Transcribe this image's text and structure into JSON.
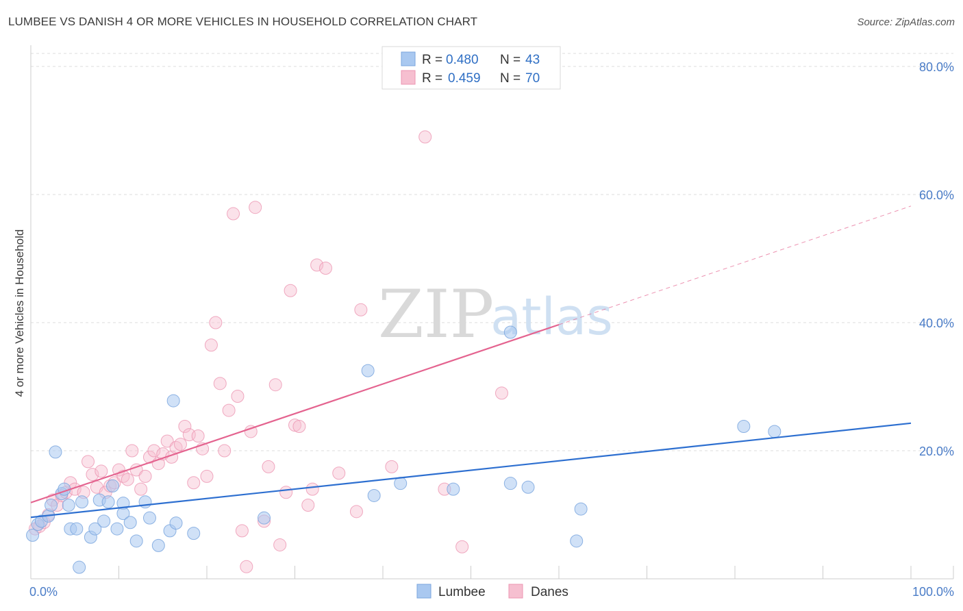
{
  "title": "LUMBEE VS DANISH 4 OR MORE VEHICLES IN HOUSEHOLD CORRELATION CHART",
  "source": "Source: ZipAtlas.com",
  "watermark": {
    "zip": "ZIP",
    "atlas": "atlas"
  },
  "colors": {
    "lumbee_fill": "#a9c8f0",
    "lumbee_stroke": "#7aa6de",
    "lumbee_line": "#2d6fd0",
    "danes_fill": "#f6bfd0",
    "danes_stroke": "#ec95b2",
    "danes_line": "#e4638f",
    "grid": "#dddddd",
    "tick_label": "#4a7cc7"
  },
  "legend": {
    "lumbee": {
      "r_label": "R = ",
      "r_value": "0.480",
      "n_label": "N = ",
      "n_value": "43"
    },
    "danes": {
      "r_label": "R = ",
      "r_value": "0.459",
      "n_label": "N = ",
      "n_value": "70"
    }
  },
  "bottom_legend": {
    "lumbee": "Lumbee",
    "danes": "Danes"
  },
  "chart_data": {
    "type": "scatter",
    "title": "LUMBEE VS DANISH 4 OR MORE VEHICLES IN HOUSEHOLD CORRELATION CHART",
    "xlabel": "",
    "ylabel": "4 or more Vehicles in Household",
    "xlim": [
      0,
      100
    ],
    "ylim": [
      0,
      80
    ],
    "x_tick_labels": [
      "0.0%",
      "100.0%"
    ],
    "y_ticks": [
      20,
      40,
      60,
      80
    ],
    "y_tick_labels": [
      "20.0%",
      "40.0%",
      "60.0%",
      "80.0%"
    ],
    "grid": true,
    "legend_position": "top-center",
    "series": [
      {
        "name": "Lumbee",
        "r": 0.48,
        "n": 43,
        "trend": {
          "x": [
            0,
            100
          ],
          "y": [
            9.6,
            24.3
          ]
        },
        "points": [
          [
            0.2,
            6.8
          ],
          [
            0.8,
            8.5
          ],
          [
            1.2,
            9.0
          ],
          [
            2.0,
            9.8
          ],
          [
            2.3,
            11.5
          ],
          [
            2.8,
            19.8
          ],
          [
            3.5,
            13.3
          ],
          [
            3.8,
            14.0
          ],
          [
            4.3,
            11.5
          ],
          [
            4.5,
            7.8
          ],
          [
            5.2,
            7.8
          ],
          [
            5.5,
            1.8
          ],
          [
            5.8,
            12.0
          ],
          [
            6.8,
            6.5
          ],
          [
            7.3,
            7.8
          ],
          [
            7.8,
            12.3
          ],
          [
            8.3,
            9.0
          ],
          [
            8.8,
            12.0
          ],
          [
            9.3,
            14.5
          ],
          [
            9.8,
            7.8
          ],
          [
            10.5,
            11.8
          ],
          [
            10.5,
            10.2
          ],
          [
            11.3,
            8.8
          ],
          [
            12.0,
            5.9
          ],
          [
            13.0,
            12.0
          ],
          [
            13.5,
            9.5
          ],
          [
            14.5,
            5.2
          ],
          [
            15.8,
            7.5
          ],
          [
            16.2,
            27.8
          ],
          [
            16.5,
            8.7
          ],
          [
            18.5,
            7.1
          ],
          [
            26.5,
            9.5
          ],
          [
            38.3,
            32.5
          ],
          [
            39.0,
            13.0
          ],
          [
            42.0,
            14.9
          ],
          [
            48.0,
            14.0
          ],
          [
            54.5,
            38.5
          ],
          [
            54.5,
            14.9
          ],
          [
            56.5,
            14.3
          ],
          [
            62.5,
            10.9
          ],
          [
            62.0,
            5.9
          ],
          [
            81.0,
            23.8
          ],
          [
            84.5,
            23.0
          ]
        ]
      },
      {
        "name": "Danes",
        "r": 0.459,
        "n": 70,
        "trend": {
          "x": [
            0,
            100
          ],
          "y": [
            11.9,
            58.2
          ],
          "solid_until_x": 60
        },
        "points": [
          [
            0.5,
            7.8
          ],
          [
            1.0,
            8.2
          ],
          [
            1.5,
            8.8
          ],
          [
            2.0,
            10.0
          ],
          [
            2.5,
            12.3
          ],
          [
            3.0,
            11.5
          ],
          [
            3.5,
            13.0
          ],
          [
            4.0,
            13.5
          ],
          [
            4.5,
            15.0
          ],
          [
            5.0,
            14.0
          ],
          [
            6.0,
            13.5
          ],
          [
            6.5,
            18.3
          ],
          [
            7.0,
            16.3
          ],
          [
            7.5,
            14.3
          ],
          [
            8.0,
            16.8
          ],
          [
            8.5,
            13.5
          ],
          [
            9.0,
            14.5
          ],
          [
            9.5,
            15.0
          ],
          [
            10.0,
            17.0
          ],
          [
            10.5,
            16.0
          ],
          [
            11.0,
            15.5
          ],
          [
            11.5,
            20.0
          ],
          [
            12.0,
            17.0
          ],
          [
            12.5,
            14.0
          ],
          [
            13.0,
            16.0
          ],
          [
            13.5,
            19.0
          ],
          [
            14.0,
            20.0
          ],
          [
            14.5,
            18.0
          ],
          [
            15.0,
            19.5
          ],
          [
            15.5,
            21.5
          ],
          [
            16.0,
            19.0
          ],
          [
            16.5,
            20.5
          ],
          [
            17.0,
            21.0
          ],
          [
            17.5,
            23.8
          ],
          [
            18.0,
            22.5
          ],
          [
            18.5,
            15.0
          ],
          [
            19.0,
            22.3
          ],
          [
            19.5,
            20.3
          ],
          [
            20.0,
            16.0
          ],
          [
            20.5,
            36.5
          ],
          [
            21.0,
            40.0
          ],
          [
            21.5,
            30.5
          ],
          [
            22.0,
            20.0
          ],
          [
            22.5,
            26.3
          ],
          [
            23.0,
            57.0
          ],
          [
            23.5,
            28.5
          ],
          [
            24.0,
            7.5
          ],
          [
            24.5,
            1.9
          ],
          [
            25.0,
            23.0
          ],
          [
            25.5,
            58.0
          ],
          [
            26.5,
            9.0
          ],
          [
            27.0,
            17.5
          ],
          [
            27.8,
            30.3
          ],
          [
            28.3,
            5.3
          ],
          [
            29.0,
            13.5
          ],
          [
            29.5,
            45.0
          ],
          [
            30.0,
            24.0
          ],
          [
            30.5,
            23.8
          ],
          [
            31.5,
            11.5
          ],
          [
            32.0,
            14.0
          ],
          [
            32.5,
            49.0
          ],
          [
            33.5,
            48.5
          ],
          [
            35.0,
            16.5
          ],
          [
            37.0,
            10.5
          ],
          [
            37.5,
            42.0
          ],
          [
            41.0,
            17.5
          ],
          [
            44.8,
            69.0
          ],
          [
            47.0,
            14.0
          ],
          [
            49.0,
            5.0
          ],
          [
            53.5,
            29.0
          ]
        ]
      }
    ]
  }
}
